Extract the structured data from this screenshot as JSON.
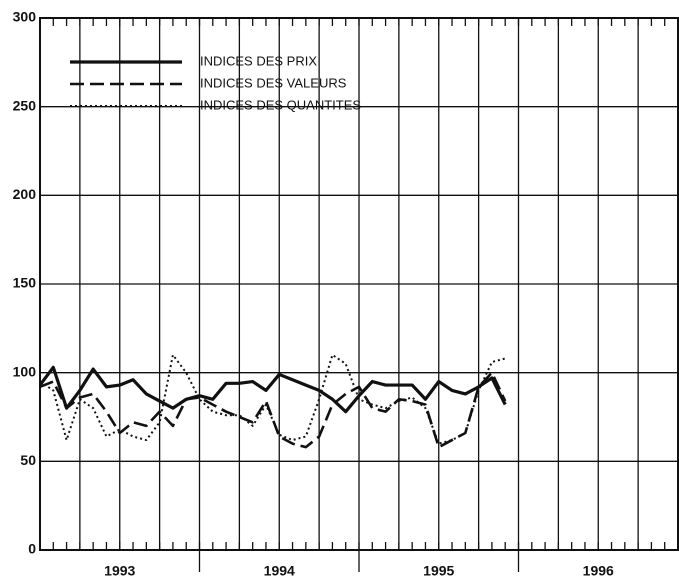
{
  "chart_data": {
    "type": "line",
    "categories": [
      null,
      null,
      null,
      null,
      null,
      null,
      null,
      null,
      null,
      null,
      null,
      null,
      null,
      null,
      null,
      null,
      null,
      null,
      null,
      null,
      null,
      null,
      null,
      null,
      null,
      null,
      null,
      null,
      null,
      null,
      null,
      null,
      null,
      null,
      null,
      null,
      null,
      null,
      null,
      null,
      null,
      null,
      null,
      null,
      null,
      null,
      null,
      null
    ],
    "x_group_labels": [
      "1993",
      "1994",
      "1995",
      "1996"
    ],
    "series": [
      {
        "name": "INDICES DES PRIX",
        "color": "#111111",
        "style": "solid",
        "values": [
          93,
          103,
          80,
          90,
          102,
          92,
          93,
          96,
          88,
          84,
          80,
          85,
          87,
          85,
          94,
          94,
          95,
          90,
          99,
          96,
          93,
          90,
          85,
          78,
          87,
          95,
          93,
          93,
          93,
          85,
          95,
          90,
          88,
          92,
          97,
          82,
          null,
          null,
          null,
          null,
          null,
          null,
          null,
          null,
          null,
          null,
          null,
          null
        ]
      },
      {
        "name": "INDICES DES VALEURS",
        "color": "#111111",
        "style": "dashed",
        "values": [
          92,
          95,
          80,
          86,
          88,
          78,
          66,
          72,
          70,
          78,
          70,
          85,
          86,
          82,
          78,
          75,
          72,
          84,
          64,
          60,
          58,
          64,
          82,
          88,
          92,
          80,
          78,
          85,
          84,
          82,
          58,
          62,
          66,
          92,
          100,
          84,
          null,
          null,
          null,
          null,
          null,
          null,
          null,
          null,
          null,
          null,
          null,
          null
        ]
      },
      {
        "name": "INDICES DES QUANTITES",
        "color": "#111111",
        "style": "dotted",
        "values": [
          95,
          90,
          62,
          85,
          80,
          64,
          68,
          64,
          62,
          72,
          110,
          100,
          85,
          78,
          76,
          76,
          70,
          82,
          65,
          62,
          64,
          85,
          110,
          105,
          85,
          82,
          80,
          84,
          86,
          80,
          60,
          62,
          66,
          90,
          106,
          108,
          null,
          null,
          null,
          null,
          null,
          null,
          null,
          null,
          null,
          null,
          null,
          null
        ]
      }
    ],
    "ylim": [
      0,
      300
    ],
    "yticks": [
      0,
      50,
      100,
      150,
      200,
      250,
      300
    ],
    "grid": true,
    "legend": "upper left"
  }
}
